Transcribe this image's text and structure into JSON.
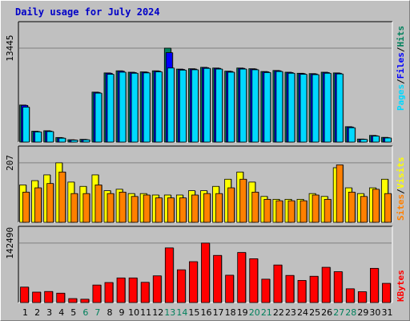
{
  "title": "Daily usage for July 2024",
  "chart_data": [
    {
      "type": "bar",
      "name_panel": "pages-files-hits",
      "categories": [
        "1",
        "2",
        "3",
        "4",
        "5",
        "6",
        "7",
        "8",
        "9",
        "10",
        "11",
        "12",
        "13",
        "14",
        "15",
        "16",
        "17",
        "18",
        "19",
        "20",
        "21",
        "22",
        "23",
        "24",
        "25",
        "26",
        "27",
        "28",
        "29",
        "30",
        "31"
      ],
      "weekend_days": [
        "6",
        "7",
        "13",
        "14",
        "20",
        "21",
        "27",
        "28"
      ],
      "ylim": [
        0,
        13445
      ],
      "max_label": "13445",
      "legend": {
        "pages": "Pages",
        "files": "Files",
        "hits": "Hits",
        "sep": "/"
      },
      "colors": {
        "hits": "#00805c",
        "files": "#0000ff",
        "pages": "#00d8ff"
      },
      "series": [
        {
          "name": "Hits",
          "values": [
            5300,
            1550,
            1620,
            650,
            330,
            390,
            7150,
            9900,
            10200,
            10000,
            10050,
            10200,
            13445,
            10450,
            10500,
            10700,
            10600,
            10150,
            10600,
            10500,
            10100,
            10250,
            10000,
            9850,
            9800,
            10000,
            9900,
            2200,
            430,
            950,
            670
          ]
        },
        {
          "name": "Files",
          "values": [
            5250,
            1500,
            1570,
            600,
            300,
            350,
            7100,
            9850,
            10150,
            9950,
            10000,
            10150,
            12800,
            10400,
            10450,
            10650,
            10550,
            10100,
            10550,
            10450,
            10050,
            10200,
            9950,
            9800,
            9750,
            9950,
            9850,
            2150,
            400,
            900,
            620
          ]
        },
        {
          "name": "Pages",
          "values": [
            5000,
            1450,
            1500,
            550,
            270,
            320,
            7000,
            9700,
            10000,
            9850,
            9900,
            10050,
            10600,
            10300,
            10350,
            10550,
            10450,
            10000,
            10450,
            10350,
            9950,
            10100,
            9850,
            9700,
            9650,
            9850,
            9750,
            2050,
            380,
            850,
            580
          ]
        }
      ]
    },
    {
      "type": "bar",
      "name_panel": "visits-sites",
      "ylim": [
        0,
        207
      ],
      "max_label": "207",
      "legend": {
        "sites": "Sites",
        "visits": "Visits",
        "sep": "/"
      },
      "colors": {
        "visits": "#ffff00",
        "sites": "#ff8000"
      },
      "series": [
        {
          "name": "Visits",
          "values": [
            130,
            145,
            165,
            207,
            140,
            125,
            165,
            110,
            115,
            100,
            100,
            95,
            95,
            95,
            110,
            110,
            125,
            150,
            175,
            140,
            90,
            80,
            80,
            80,
            100,
            90,
            190,
            120,
            100,
            120,
            150
          ]
        },
        {
          "name": "Sites",
          "values": [
            105,
            120,
            135,
            175,
            100,
            100,
            130,
            100,
            105,
            90,
            95,
            85,
            85,
            85,
            95,
            100,
            100,
            120,
            150,
            105,
            80,
            75,
            75,
            75,
            95,
            80,
            200,
            105,
            90,
            115,
            100
          ]
        }
      ]
    },
    {
      "type": "bar",
      "name_panel": "kbytes",
      "ylim": [
        0,
        142490
      ],
      "max_label": "142490",
      "legend": {
        "kbytes": "KBytes"
      },
      "colors": {
        "kbytes": "#ff0000"
      },
      "series": [
        {
          "name": "KBytes",
          "values": [
            37000,
            25000,
            26500,
            22500,
            9500,
            8000,
            42000,
            48000,
            59000,
            59000,
            48500,
            64000,
            131000,
            78500,
            98000,
            142490,
            113000,
            65500,
            120000,
            105000,
            56000,
            90000,
            65000,
            53000,
            63000,
            84500,
            74000,
            33000,
            26000,
            82000,
            46000
          ]
        }
      ]
    }
  ]
}
